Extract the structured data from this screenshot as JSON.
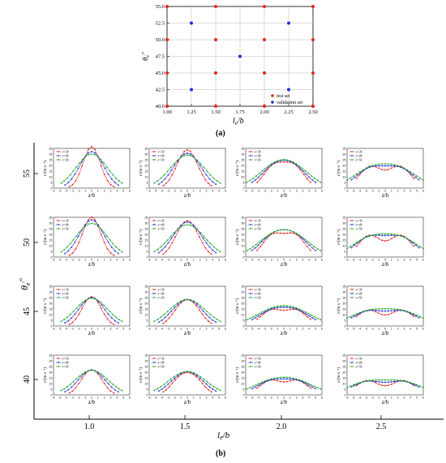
{
  "chart_data": [
    {
      "panel": "a",
      "type": "scatter",
      "xlabel": "l_e/b",
      "ylabel": "θ_e/°",
      "xlim": [
        1.0,
        2.5
      ],
      "ylim": [
        40.0,
        55.0
      ],
      "xticks": [
        "1.00",
        "1.25",
        "1.50",
        "1.75",
        "2.00",
        "2.25",
        "2.50"
      ],
      "yticks": [
        "40.0",
        "42.5",
        "45.0",
        "47.5",
        "50.0",
        "52.5",
        "55.0"
      ],
      "grid": true,
      "legend_position": "bottom-right",
      "series": [
        {
          "name": "test set",
          "color": "#e8231f",
          "points": [
            [
              1.0,
              40
            ],
            [
              1.0,
              45
            ],
            [
              1.0,
              50
            ],
            [
              1.0,
              55
            ],
            [
              1.5,
              40
            ],
            [
              1.5,
              45
            ],
            [
              1.5,
              50
            ],
            [
              1.5,
              55
            ],
            [
              2.0,
              40
            ],
            [
              2.0,
              45
            ],
            [
              2.0,
              50
            ],
            [
              2.0,
              55
            ],
            [
              2.5,
              40
            ],
            [
              2.5,
              45
            ],
            [
              2.5,
              50
            ],
            [
              2.5,
              55
            ]
          ]
        },
        {
          "name": "validation set",
          "color": "#1f2fd6",
          "points": [
            [
              1.25,
              42.5
            ],
            [
              1.25,
              52.5
            ],
            [
              1.75,
              47.5
            ],
            [
              2.25,
              42.5
            ],
            [
              2.25,
              52.5
            ]
          ]
        }
      ]
    },
    {
      "panel": "b",
      "type": "line",
      "xlabel": "l_e/b",
      "ylabel": "θ_e/°",
      "col_labels": [
        "1.0",
        "1.5",
        "2.0",
        "2.5"
      ],
      "row_labels": [
        "55",
        "50",
        "45",
        "40"
      ],
      "subplot_xlabel": "z/b",
      "subplot_ylabel": "v/(m·s⁻¹)",
      "subplot_xticks": [
        "-6",
        "-5",
        "-4",
        "-3",
        "-2",
        "-1",
        "0",
        "1",
        "2",
        "3",
        "4",
        "5",
        "6"
      ],
      "subplot_yticks": [
        "0",
        "5",
        "10",
        "15",
        "20",
        "25",
        "30",
        "35"
      ],
      "subplot_ylim": [
        0,
        35
      ],
      "legend": [
        "x=3b",
        "x=4b",
        "x=5b"
      ],
      "series_colors": [
        "#e8231f",
        "#1f2fd6",
        "#1fa82a"
      ],
      "note": "4×4 grid of velocity profiles: rows θe = 55, 50, 45, 40; columns le/b = 1.0, 1.5, 2.0, 2.5"
    }
  ],
  "captions": {
    "a": "(a)",
    "b": "(b)"
  },
  "labels": {
    "a_xlabel_main": "l",
    "a_xlabel_sub": "e",
    "a_xlabel_rest": "/b",
    "a_ylabel_main": "θ",
    "a_ylabel_sub": "e",
    "a_ylabel_sup": "/°",
    "b_xlabel_main": "l",
    "b_xlabel_sub": "e",
    "b_xlabel_rest": "/b",
    "b_ylabel_main": "θ",
    "b_ylabel_sub": "e",
    "b_ylabel_sup": "/°"
  },
  "legend_a": [
    "test set",
    "validation set"
  ]
}
